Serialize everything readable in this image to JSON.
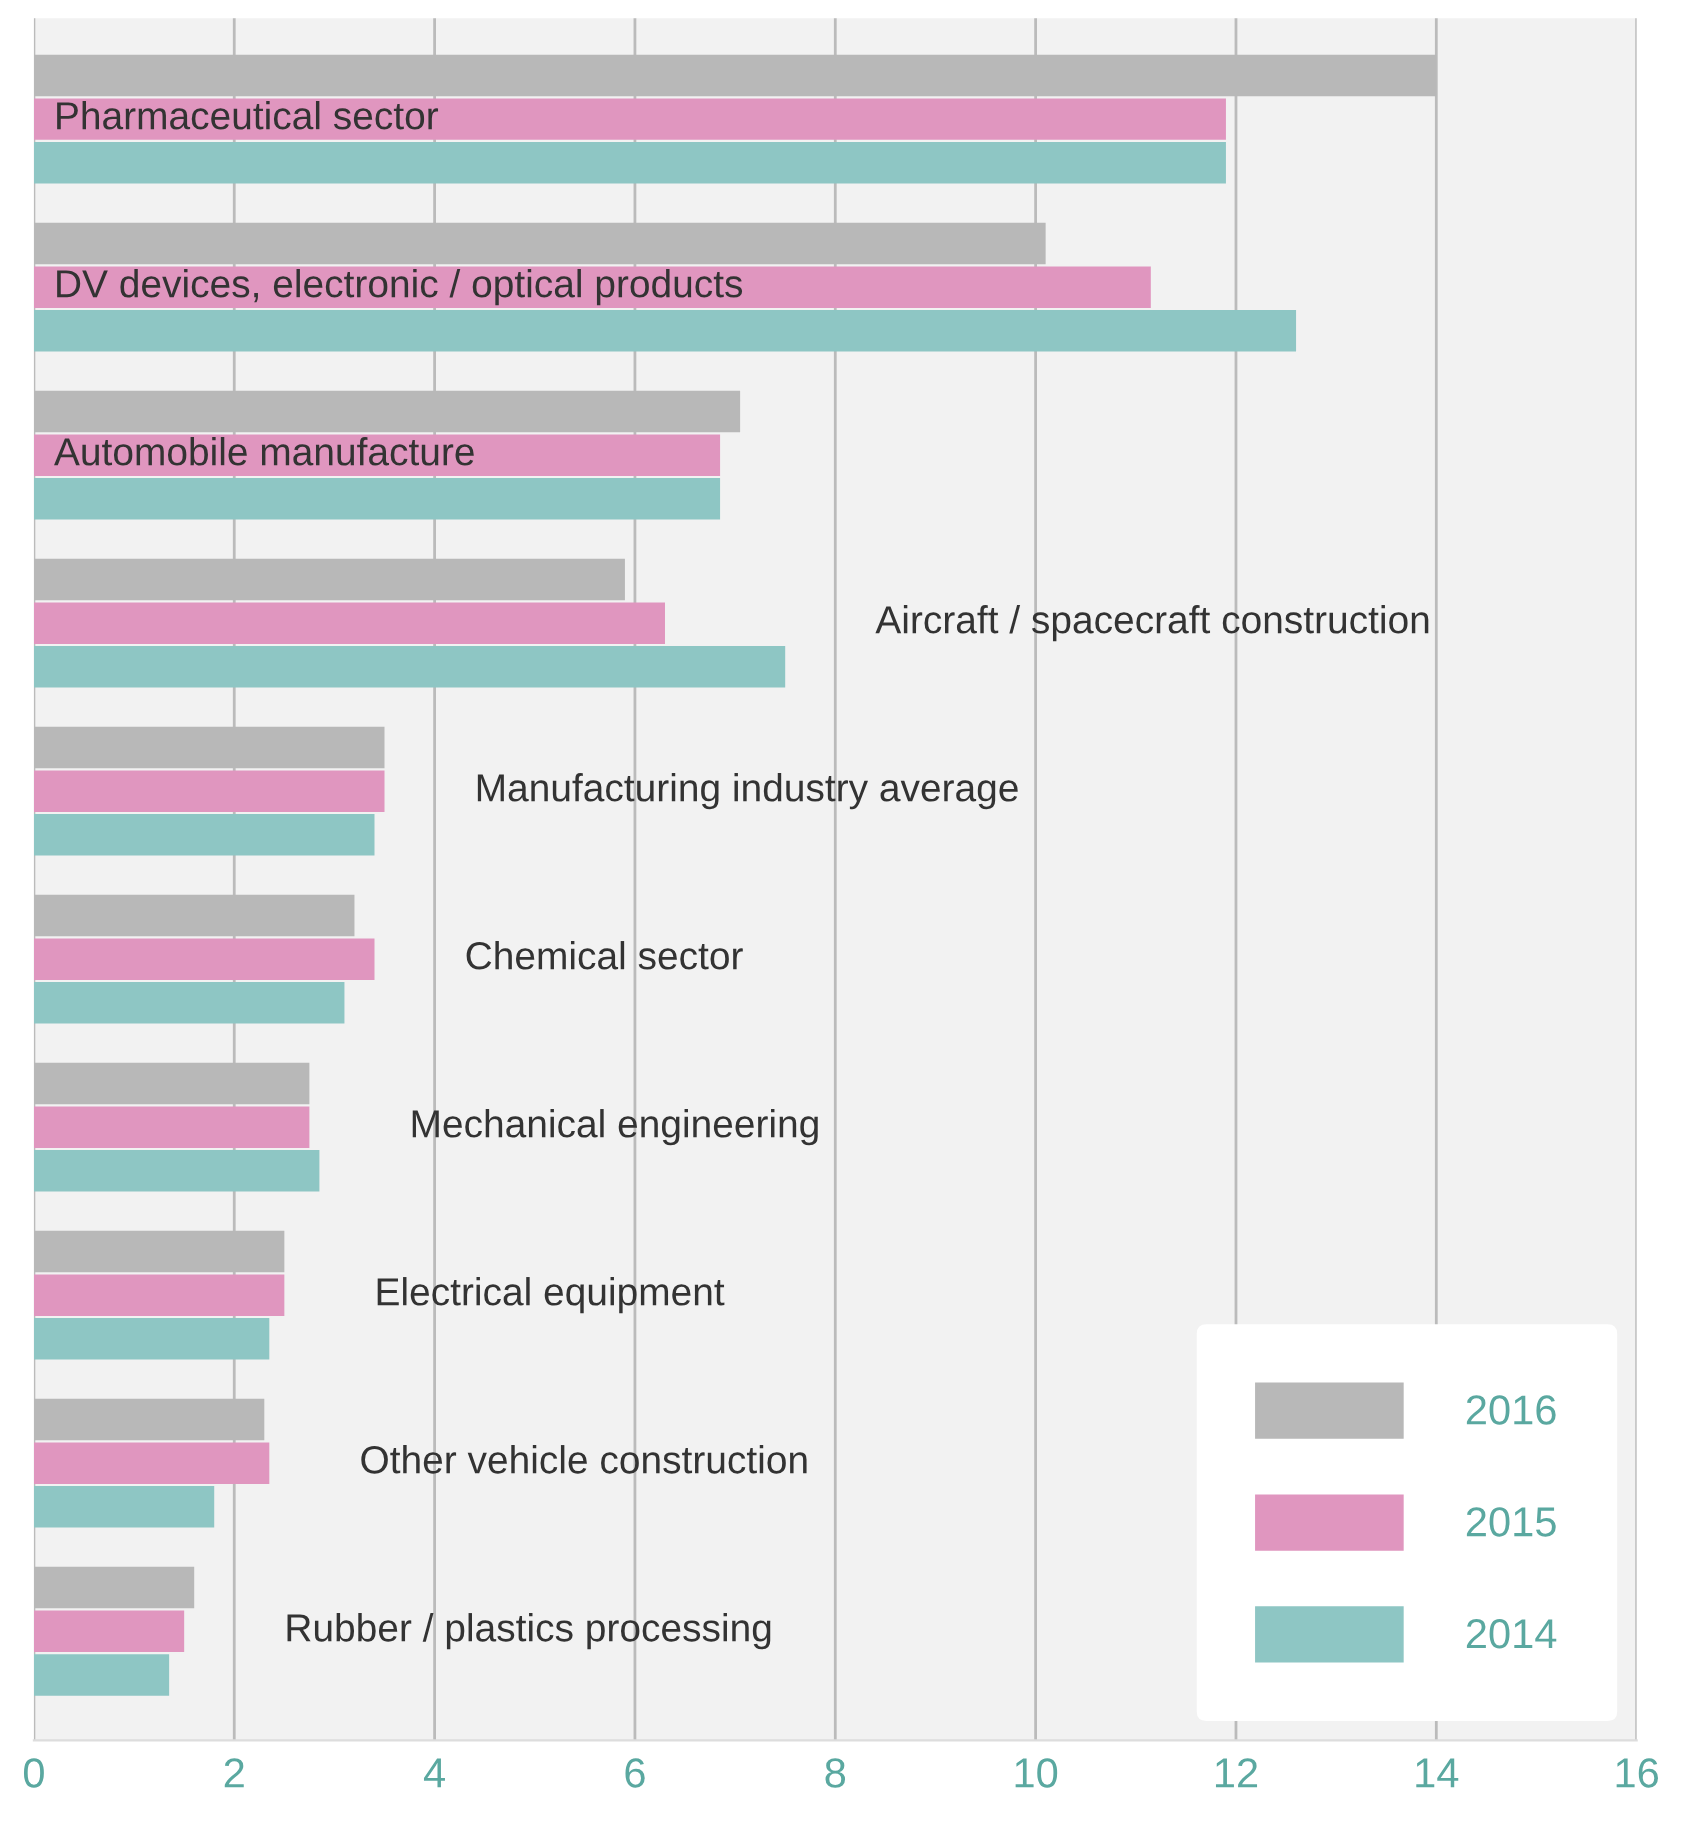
{
  "chart_data": {
    "type": "bar",
    "orientation": "horizontal",
    "categories": [
      "Pharmaceutical sector",
      "DV devices, electronic / optical products",
      "Automobile manufacture",
      "Aircraft / spacecraft construction",
      "Manufacturing industry average",
      "Chemical sector",
      "Mechanical engineering",
      "Electrical equipment",
      "Other vehicle construction",
      "Rubber / plastics processing"
    ],
    "series": [
      {
        "name": "2016",
        "color": "#b8b8b8",
        "values": [
          14.0,
          10.1,
          7.05,
          5.9,
          3.5,
          3.2,
          2.75,
          2.5,
          2.3,
          1.6
        ]
      },
      {
        "name": "2015",
        "color": "#e096bf",
        "values": [
          11.9,
          11.15,
          6.85,
          6.3,
          3.5,
          3.4,
          2.75,
          2.5,
          2.35,
          1.5
        ]
      },
      {
        "name": "2014",
        "color": "#8ec6c4",
        "values": [
          11.9,
          12.6,
          6.85,
          7.5,
          3.4,
          3.1,
          2.85,
          2.35,
          1.8,
          1.35
        ]
      }
    ],
    "xlim": [
      0,
      16
    ],
    "xticks": [
      0,
      2,
      4,
      6,
      8,
      10,
      12,
      14,
      16
    ],
    "grid": "x",
    "legend": "bottom right",
    "tick_labels": "x"
  }
}
